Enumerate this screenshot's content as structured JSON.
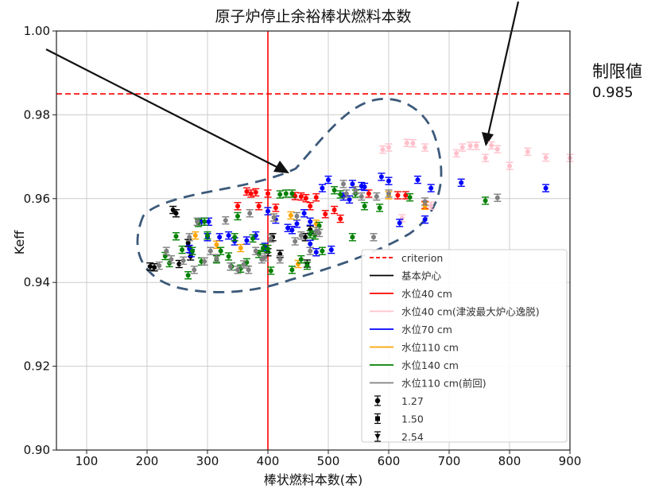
{
  "chart_data": {
    "type": "scatter",
    "title": "原子炉停止余裕棒状燃料本数",
    "xlabel": "棒状燃料本数(本)",
    "ylabel": "Keff",
    "xlim": [
      50,
      900
    ],
    "ylim": [
      0.9,
      1.0
    ],
    "xticks": [
      100,
      200,
      300,
      400,
      500,
      600,
      700,
      800,
      900
    ],
    "yticks": [
      0.9,
      0.92,
      0.94,
      0.96,
      0.98,
      1.0
    ],
    "xtick_labels": [
      "100",
      "200",
      "300",
      "400",
      "500",
      "600",
      "700",
      "800",
      "900"
    ],
    "ytick_labels": [
      "0.90",
      "0.92",
      "0.94",
      "0.96",
      "0.98",
      "1.00"
    ],
    "grid": true,
    "criterion": 0.985,
    "vertical_line_x": 400,
    "legend_position": "lower-right",
    "legend_lines": [
      {
        "label": "criterion",
        "color": "#ff0000",
        "dash": true
      },
      {
        "label": "基本炉心",
        "color": "#000000",
        "dash": false
      },
      {
        "label": "水位40 cm",
        "color": "#ff0000",
        "dash": false
      },
      {
        "label": "水位40 cm(津波最大炉心逸脱)",
        "color": "#ffc0cb",
        "dash": false
      },
      {
        "label": "水位70 cm",
        "color": "#0000ff",
        "dash": false
      },
      {
        "label": "水位110 cm",
        "color": "#ffa500",
        "dash": false
      },
      {
        "label": "水位140 cm",
        "color": "#008000",
        "dash": false
      },
      {
        "label": "水位110 cm(前回)",
        "color": "#808080",
        "dash": false
      }
    ],
    "legend_markers": [
      {
        "label": "1.27",
        "marker": "circle"
      },
      {
        "label": "1.50",
        "marker": "square"
      },
      {
        "label": "2.54",
        "marker": "triangle"
      }
    ],
    "series": [
      {
        "name": "基本炉心",
        "color": "#000000",
        "points": [
          [
            205,
            0.9438
          ],
          [
            212,
            0.9436
          ],
          [
            243,
            0.9573
          ],
          [
            248,
            0.9565
          ],
          [
            253,
            0.9444
          ],
          [
            268,
            0.9494
          ],
          [
            272,
            0.9462
          ],
          [
            400,
            0.9472
          ],
          [
            408,
            0.9508
          ],
          [
            420,
            0.9468
          ],
          [
            462,
            0.9508
          ],
          [
            465,
            0.9445
          ],
          [
            470,
            0.9526
          ]
        ]
      },
      {
        "name": "水位40 cm",
        "color": "#ff0000",
        "points": [
          [
            350,
            0.9582
          ],
          [
            365,
            0.9617
          ],
          [
            372,
            0.9612
          ],
          [
            380,
            0.9615
          ],
          [
            385,
            0.9582
          ],
          [
            400,
            0.9612
          ],
          [
            413,
            0.9578
          ],
          [
            445,
            0.9606
          ],
          [
            455,
            0.9605
          ],
          [
            463,
            0.9601
          ],
          [
            470,
            0.9582
          ],
          [
            480,
            0.9603
          ],
          [
            495,
            0.9563
          ],
          [
            510,
            0.9573
          ],
          [
            520,
            0.9552
          ],
          [
            567,
            0.9612
          ],
          [
            615,
            0.9608
          ],
          [
            628,
            0.9608
          ],
          [
            660,
            0.9585
          ]
        ]
      },
      {
        "name": "水位40 cm(津波最大炉心逸脱)",
        "color": "#ffc0cb",
        "points": [
          [
            590,
            0.9717
          ],
          [
            600,
            0.9722
          ],
          [
            630,
            0.9733
          ],
          [
            640,
            0.9732
          ],
          [
            660,
            0.9722
          ],
          [
            712,
            0.9708
          ],
          [
            722,
            0.9722
          ],
          [
            735,
            0.9726
          ],
          [
            745,
            0.9726
          ],
          [
            760,
            0.9697
          ],
          [
            770,
            0.9727
          ],
          [
            780,
            0.9718
          ],
          [
            800,
            0.9678
          ],
          [
            830,
            0.9712
          ],
          [
            860,
            0.9698
          ],
          [
            900,
            0.9697
          ],
          [
            622,
            0.9553
          ],
          [
            670,
            0.9583
          ]
        ]
      },
      {
        "name": "水位70 cm",
        "color": "#0000ff",
        "points": [
          [
            270,
            0.948
          ],
          [
            273,
            0.947
          ],
          [
            290,
            0.9545
          ],
          [
            302,
            0.9545
          ],
          [
            300,
            0.9508
          ],
          [
            320,
            0.9508
          ],
          [
            335,
            0.9512
          ],
          [
            345,
            0.9498
          ],
          [
            365,
            0.95
          ],
          [
            380,
            0.9512
          ],
          [
            395,
            0.9485
          ],
          [
            400,
            0.957
          ],
          [
            413,
            0.955
          ],
          [
            433,
            0.953
          ],
          [
            440,
            0.9525
          ],
          [
            448,
            0.954
          ],
          [
            460,
            0.9565
          ],
          [
            470,
            0.9545
          ],
          [
            470,
            0.9492
          ],
          [
            480,
            0.9472
          ],
          [
            490,
            0.9625
          ],
          [
            500,
            0.9645
          ],
          [
            505,
            0.9478
          ],
          [
            525,
            0.9605
          ],
          [
            535,
            0.9598
          ],
          [
            540,
            0.9635
          ],
          [
            555,
            0.963
          ],
          [
            560,
            0.9628
          ],
          [
            588,
            0.9652
          ],
          [
            600,
            0.9642
          ],
          [
            618,
            0.9542
          ],
          [
            648,
            0.9645
          ],
          [
            660,
            0.955
          ],
          [
            670,
            0.9625
          ],
          [
            720,
            0.9638
          ],
          [
            860,
            0.9625
          ]
        ]
      },
      {
        "name": "水位110 cm",
        "color": "#ffa500",
        "points": [
          [
            280,
            0.9512
          ],
          [
            315,
            0.949
          ],
          [
            355,
            0.9482
          ],
          [
            410,
            0.9555
          ],
          [
            438,
            0.956
          ],
          [
            450,
            0.9444
          ],
          [
            480,
            0.954
          ],
          [
            600,
            0.9608
          ],
          [
            660,
            0.9583
          ]
        ]
      },
      {
        "name": "水位140 cm",
        "color": "#008000",
        "points": [
          [
            230,
            0.9463
          ],
          [
            237,
            0.9446
          ],
          [
            248,
            0.951
          ],
          [
            258,
            0.9478
          ],
          [
            268,
            0.9417
          ],
          [
            275,
            0.9475
          ],
          [
            285,
            0.9542
          ],
          [
            290,
            0.945
          ],
          [
            295,
            0.9545
          ],
          [
            300,
            0.9512
          ],
          [
            315,
            0.9455
          ],
          [
            322,
            0.9475
          ],
          [
            335,
            0.9462
          ],
          [
            340,
            0.9438
          ],
          [
            345,
            0.9508
          ],
          [
            350,
            0.9558
          ],
          [
            355,
            0.9433
          ],
          [
            365,
            0.9448
          ],
          [
            375,
            0.9505
          ],
          [
            385,
            0.9468
          ],
          [
            392,
            0.9482
          ],
          [
            400,
            0.948
          ],
          [
            405,
            0.9428
          ],
          [
            420,
            0.961
          ],
          [
            430,
            0.9612
          ],
          [
            440,
            0.9612
          ],
          [
            440,
            0.943
          ],
          [
            455,
            0.9455
          ],
          [
            465,
            0.944
          ],
          [
            470,
            0.9515
          ],
          [
            478,
            0.9512
          ],
          [
            485,
            0.9535
          ],
          [
            490,
            0.9475
          ],
          [
            510,
            0.962
          ],
          [
            520,
            0.961
          ],
          [
            540,
            0.9508
          ],
          [
            545,
            0.9612
          ],
          [
            560,
            0.9582
          ],
          [
            585,
            0.9578
          ],
          [
            635,
            0.9603
          ],
          [
            760,
            0.9595
          ]
        ]
      },
      {
        "name": "水位110 cm(前回)",
        "color": "#808080",
        "points": [
          [
            220,
            0.944
          ],
          [
            232,
            0.9475
          ],
          [
            240,
            0.9455
          ],
          [
            260,
            0.9452
          ],
          [
            270,
            0.9508
          ],
          [
            278,
            0.943
          ],
          [
            283,
            0.9545
          ],
          [
            295,
            0.945
          ],
          [
            305,
            0.9475
          ],
          [
            315,
            0.9458
          ],
          [
            330,
            0.9548
          ],
          [
            338,
            0.9438
          ],
          [
            350,
            0.943
          ],
          [
            360,
            0.9443
          ],
          [
            368,
            0.943
          ],
          [
            370,
            0.9565
          ],
          [
            380,
            0.9475
          ],
          [
            390,
            0.9455
          ],
          [
            395,
            0.946
          ],
          [
            405,
            0.9505
          ],
          [
            410,
            0.9555
          ],
          [
            420,
            0.9455
          ],
          [
            445,
            0.9498
          ],
          [
            448,
            0.9558
          ],
          [
            455,
            0.9512
          ],
          [
            470,
            0.9475
          ],
          [
            480,
            0.9523
          ],
          [
            485,
            0.9518
          ],
          [
            525,
            0.9635
          ],
          [
            530,
            0.9612
          ],
          [
            545,
            0.962
          ],
          [
            555,
            0.9605
          ],
          [
            575,
            0.9508
          ],
          [
            580,
            0.9605
          ],
          [
            600,
            0.9612
          ],
          [
            660,
            0.9593
          ],
          [
            780,
            0.9602
          ]
        ]
      }
    ],
    "annotations": [
      {
        "text": "制限値",
        "color": "#111111"
      },
      {
        "text": "0.985",
        "color": "#111111"
      }
    ]
  }
}
